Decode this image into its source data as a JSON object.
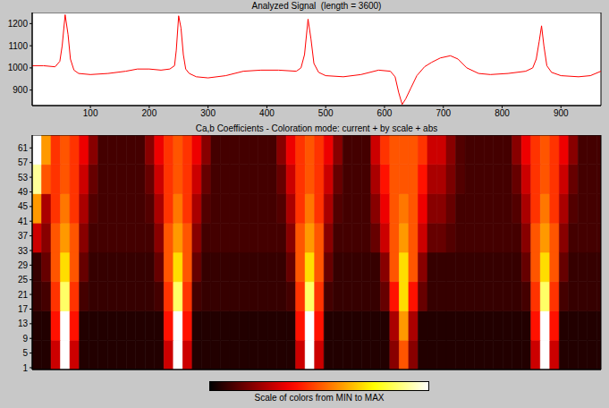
{
  "chart_data": [
    {
      "type": "line",
      "title": "Analyzed Signal  (length = 3600)",
      "color": "#ff0000",
      "x": [
        1,
        20,
        40,
        48,
        52,
        57,
        62,
        66,
        72,
        80,
        100,
        130,
        160,
        180,
        200,
        220,
        235,
        243,
        246,
        250,
        254,
        258,
        262,
        268,
        280,
        300,
        330,
        360,
        390,
        420,
        450,
        458,
        464,
        470,
        475,
        480,
        488,
        500,
        530,
        560,
        590,
        610,
        618,
        624,
        630,
        636,
        645,
        655,
        668,
        680,
        695,
        712,
        725,
        740,
        760,
        780,
        810,
        840,
        852,
        858,
        863,
        867,
        871,
        876,
        884,
        900,
        930,
        950,
        968
      ],
      "values": [
        1010,
        1010,
        1005,
        1030,
        1100,
        1240,
        1150,
        1040,
        990,
        975,
        970,
        975,
        985,
        995,
        995,
        990,
        995,
        1010,
        1080,
        1235,
        1180,
        1060,
        995,
        975,
        960,
        955,
        965,
        985,
        990,
        990,
        985,
        1000,
        1060,
        1220,
        1130,
        1020,
        980,
        965,
        960,
        970,
        990,
        985,
        960,
        890,
        835,
        860,
        910,
        965,
        1005,
        1025,
        1045,
        1055,
        1040,
        1000,
        975,
        970,
        975,
        985,
        1000,
        1040,
        1120,
        1190,
        1100,
        1010,
        980,
        965,
        960,
        965,
        985
      ],
      "xlim": [
        1,
        968
      ],
      "xticks": [
        100,
        200,
        300,
        400,
        500,
        600,
        700,
        800,
        900
      ],
      "ylim": [
        830,
        1250
      ],
      "yticks": [
        900,
        1000,
        1100,
        1200
      ]
    },
    {
      "type": "heatmap",
      "title": "Ca,b Coefficients - Coloration mode: current + by scale + abs",
      "x_bins": [
        1,
        17,
        33,
        49,
        65,
        81,
        97,
        113,
        129,
        145,
        161,
        177,
        193,
        209,
        225,
        241,
        257,
        273,
        289,
        305,
        321,
        337,
        353,
        369,
        385,
        401,
        417,
        433,
        449,
        465,
        481,
        497,
        513,
        529,
        545,
        561,
        577,
        593,
        609,
        625,
        641,
        657,
        673,
        689,
        705,
        721,
        737,
        753,
        769,
        785,
        801,
        817,
        833,
        849,
        865,
        881,
        897,
        913,
        929,
        945,
        961,
        977
      ],
      "scale_bins": [
        0.5,
        8.5,
        16.5,
        24.5,
        32.5,
        40.5,
        48.5,
        56.5,
        64.5
      ],
      "values": [
        [
          0.05,
          0.05,
          0.3,
          1,
          0.3,
          0.05,
          0.05,
          0.05,
          0.05,
          0.05,
          0.05,
          0.05,
          0.05,
          0.05,
          0.3,
          1,
          0.3,
          0.05,
          0.05,
          0.05,
          0.05,
          0.05,
          0.05,
          0.05,
          0.05,
          0.05,
          0.05,
          0.05,
          0.3,
          1,
          0.3,
          0.05,
          0.05,
          0.05,
          0.05,
          0.05,
          0.05,
          0.05,
          0.2,
          0.5,
          0.2,
          0.05,
          0.05,
          0.05,
          0.05,
          0.05,
          0.05,
          0.05,
          0.05,
          0.05,
          0.05,
          0.05,
          0.05,
          0.3,
          1,
          0.3,
          0.05,
          0.05,
          0.05,
          0.05,
          0.05
        ],
        [
          0.05,
          0.05,
          0.4,
          1,
          0.4,
          0.05,
          0.05,
          0.05,
          0.05,
          0.05,
          0.05,
          0.05,
          0.05,
          0.05,
          0.4,
          1,
          0.4,
          0.05,
          0.05,
          0.05,
          0.05,
          0.05,
          0.05,
          0.05,
          0.05,
          0.05,
          0.05,
          0.05,
          0.4,
          1,
          0.4,
          0.05,
          0.05,
          0.05,
          0.05,
          0.05,
          0.05,
          0.05,
          0.25,
          0.6,
          0.25,
          0.05,
          0.05,
          0.05,
          0.05,
          0.05,
          0.05,
          0.05,
          0.05,
          0.05,
          0.05,
          0.05,
          0.05,
          0.4,
          1,
          0.4,
          0.05,
          0.05,
          0.05,
          0.05,
          0.05
        ],
        [
          0.08,
          0.1,
          0.45,
          0.85,
          0.45,
          0.1,
          0.08,
          0.08,
          0.08,
          0.08,
          0.08,
          0.08,
          0.08,
          0.1,
          0.45,
          0.85,
          0.45,
          0.1,
          0.08,
          0.08,
          0.08,
          0.08,
          0.08,
          0.08,
          0.08,
          0.08,
          0.08,
          0.1,
          0.45,
          0.85,
          0.45,
          0.1,
          0.08,
          0.08,
          0.08,
          0.08,
          0.08,
          0.15,
          0.4,
          0.7,
          0.4,
          0.15,
          0.08,
          0.08,
          0.08,
          0.08,
          0.08,
          0.08,
          0.08,
          0.08,
          0.08,
          0.08,
          0.1,
          0.45,
          0.85,
          0.45,
          0.1,
          0.08,
          0.08,
          0.08,
          0.08
        ],
        [
          0.08,
          0.15,
          0.5,
          0.7,
          0.5,
          0.15,
          0.08,
          0.08,
          0.08,
          0.08,
          0.08,
          0.08,
          0.08,
          0.15,
          0.5,
          0.7,
          0.5,
          0.15,
          0.08,
          0.08,
          0.08,
          0.08,
          0.08,
          0.08,
          0.08,
          0.08,
          0.08,
          0.15,
          0.5,
          0.7,
          0.5,
          0.15,
          0.08,
          0.08,
          0.08,
          0.08,
          0.08,
          0.2,
          0.5,
          0.7,
          0.5,
          0.2,
          0.08,
          0.08,
          0.08,
          0.08,
          0.08,
          0.08,
          0.08,
          0.08,
          0.08,
          0.08,
          0.15,
          0.5,
          0.7,
          0.5,
          0.15,
          0.08,
          0.08,
          0.08,
          0.08
        ],
        [
          0.3,
          0.2,
          0.5,
          0.6,
          0.5,
          0.2,
          0.1,
          0.1,
          0.1,
          0.1,
          0.1,
          0.1,
          0.1,
          0.2,
          0.5,
          0.6,
          0.5,
          0.2,
          0.1,
          0.1,
          0.1,
          0.1,
          0.1,
          0.1,
          0.1,
          0.1,
          0.1,
          0.2,
          0.5,
          0.6,
          0.5,
          0.2,
          0.1,
          0.1,
          0.1,
          0.1,
          0.15,
          0.3,
          0.5,
          0.6,
          0.5,
          0.3,
          0.15,
          0.15,
          0.12,
          0.1,
          0.1,
          0.1,
          0.1,
          0.1,
          0.1,
          0.1,
          0.2,
          0.5,
          0.6,
          0.5,
          0.2,
          0.1,
          0.1,
          0.1,
          0.1
        ],
        [
          0.6,
          0.25,
          0.45,
          0.55,
          0.45,
          0.25,
          0.12,
          0.1,
          0.1,
          0.1,
          0.1,
          0.1,
          0.12,
          0.25,
          0.45,
          0.55,
          0.45,
          0.25,
          0.12,
          0.1,
          0.1,
          0.1,
          0.1,
          0.1,
          0.1,
          0.1,
          0.12,
          0.25,
          0.45,
          0.55,
          0.45,
          0.25,
          0.12,
          0.1,
          0.1,
          0.1,
          0.2,
          0.35,
          0.5,
          0.55,
          0.5,
          0.35,
          0.2,
          0.2,
          0.15,
          0.1,
          0.1,
          0.1,
          0.1,
          0.1,
          0.1,
          0.12,
          0.25,
          0.45,
          0.55,
          0.45,
          0.25,
          0.12,
          0.1,
          0.1,
          0.1
        ],
        [
          0.9,
          0.5,
          0.45,
          0.5,
          0.45,
          0.3,
          0.15,
          0.1,
          0.1,
          0.1,
          0.1,
          0.1,
          0.15,
          0.3,
          0.45,
          0.5,
          0.45,
          0.3,
          0.15,
          0.1,
          0.1,
          0.1,
          0.1,
          0.1,
          0.1,
          0.1,
          0.15,
          0.3,
          0.45,
          0.5,
          0.45,
          0.3,
          0.15,
          0.1,
          0.1,
          0.1,
          0.25,
          0.4,
          0.5,
          0.5,
          0.5,
          0.4,
          0.25,
          0.25,
          0.18,
          0.12,
          0.1,
          0.1,
          0.1,
          0.1,
          0.1,
          0.15,
          0.3,
          0.45,
          0.5,
          0.45,
          0.3,
          0.15,
          0.1,
          0.1,
          0.1
        ],
        [
          1,
          0.6,
          0.45,
          0.5,
          0.45,
          0.35,
          0.2,
          0.1,
          0.1,
          0.1,
          0.1,
          0.1,
          0.2,
          0.35,
          0.45,
          0.5,
          0.45,
          0.35,
          0.2,
          0.1,
          0.1,
          0.1,
          0.1,
          0.1,
          0.1,
          0.1,
          0.2,
          0.35,
          0.45,
          0.5,
          0.45,
          0.35,
          0.2,
          0.1,
          0.1,
          0.1,
          0.3,
          0.45,
          0.5,
          0.5,
          0.5,
          0.45,
          0.3,
          0.3,
          0.2,
          0.12,
          0.1,
          0.1,
          0.1,
          0.1,
          0.1,
          0.2,
          0.35,
          0.45,
          0.5,
          0.45,
          0.35,
          0.2,
          0.1,
          0.1,
          0.1
        ]
      ],
      "xlim": [
        1,
        968
      ],
      "ylim": [
        0.5,
        64.5
      ],
      "yticks": [
        1,
        5,
        9,
        13,
        17,
        21,
        25,
        29,
        33,
        37,
        41,
        45,
        49,
        53,
        57,
        61
      ],
      "tick_labels": "y",
      "colorbar": {
        "label": "Scale of colors from MIN to MAX",
        "range": [
          0,
          1
        ]
      }
    }
  ]
}
